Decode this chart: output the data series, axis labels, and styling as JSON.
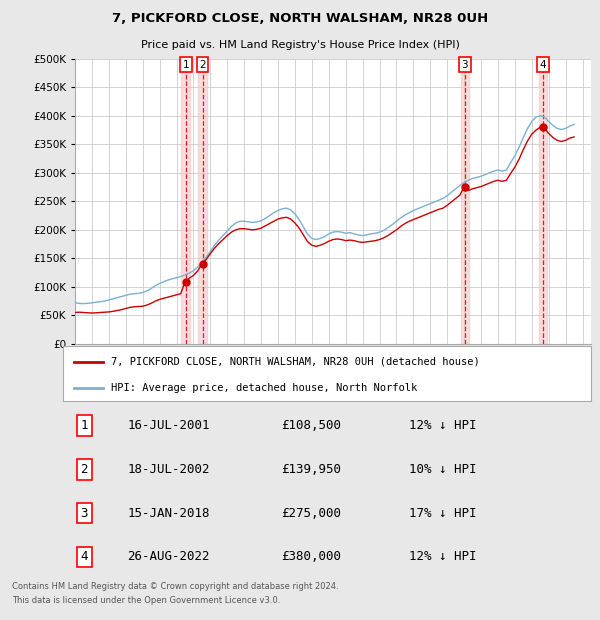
{
  "title1": "7, PICKFORD CLOSE, NORTH WALSHAM, NR28 0UH",
  "title2": "Price paid vs. HM Land Registry's House Price Index (HPI)",
  "ytick_values": [
    0,
    50000,
    100000,
    150000,
    200000,
    250000,
    300000,
    350000,
    400000,
    450000,
    500000
  ],
  "ylim": [
    0,
    500000
  ],
  "xlim_start": 1995.0,
  "xlim_end": 2025.5,
  "background_color": "#e8e8e8",
  "plot_bg_color": "#ffffff",
  "legend_label_red": "7, PICKFORD CLOSE, NORTH WALSHAM, NR28 0UH (detached house)",
  "legend_label_blue": "HPI: Average price, detached house, North Norfolk",
  "transactions": [
    {
      "num": 1,
      "date_str": "16-JUL-2001",
      "price": 108500,
      "pct": "12%",
      "year": 2001.54
    },
    {
      "num": 2,
      "date_str": "18-JUL-2002",
      "price": 139950,
      "pct": "10%",
      "year": 2002.54
    },
    {
      "num": 3,
      "date_str": "15-JAN-2018",
      "price": 275000,
      "pct": "17%",
      "year": 2018.04
    },
    {
      "num": 4,
      "date_str": "26-AUG-2022",
      "price": 380000,
      "pct": "12%",
      "year": 2022.65
    }
  ],
  "footer_line1": "Contains HM Land Registry data © Crown copyright and database right 2024.",
  "footer_line2": "This data is licensed under the Open Government Licence v3.0.",
  "hpi_color": "#7bafd4",
  "price_color": "#cc0000",
  "vline_color": "#cc0000",
  "shade_color": "#f5c6c6",
  "hpi_data": {
    "years": [
      1995.0,
      1995.25,
      1995.5,
      1995.75,
      1996.0,
      1996.25,
      1996.5,
      1996.75,
      1997.0,
      1997.25,
      1997.5,
      1997.75,
      1998.0,
      1998.25,
      1998.5,
      1998.75,
      1999.0,
      1999.25,
      1999.5,
      1999.75,
      2000.0,
      2000.25,
      2000.5,
      2000.75,
      2001.0,
      2001.25,
      2001.5,
      2001.75,
      2002.0,
      2002.25,
      2002.5,
      2002.75,
      2003.0,
      2003.25,
      2003.5,
      2003.75,
      2004.0,
      2004.25,
      2004.5,
      2004.75,
      2005.0,
      2005.25,
      2005.5,
      2005.75,
      2006.0,
      2006.25,
      2006.5,
      2006.75,
      2007.0,
      2007.25,
      2007.5,
      2007.75,
      2008.0,
      2008.25,
      2008.5,
      2008.75,
      2009.0,
      2009.25,
      2009.5,
      2009.75,
      2010.0,
      2010.25,
      2010.5,
      2010.75,
      2011.0,
      2011.25,
      2011.5,
      2011.75,
      2012.0,
      2012.25,
      2012.5,
      2012.75,
      2013.0,
      2013.25,
      2013.5,
      2013.75,
      2014.0,
      2014.25,
      2014.5,
      2014.75,
      2015.0,
      2015.25,
      2015.5,
      2015.75,
      2016.0,
      2016.25,
      2016.5,
      2016.75,
      2017.0,
      2017.25,
      2017.5,
      2017.75,
      2018.0,
      2018.25,
      2018.5,
      2018.75,
      2019.0,
      2019.25,
      2019.5,
      2019.75,
      2020.0,
      2020.25,
      2020.5,
      2020.75,
      2021.0,
      2021.25,
      2021.5,
      2021.75,
      2022.0,
      2022.25,
      2022.5,
      2022.75,
      2023.0,
      2023.25,
      2023.5,
      2023.75,
      2024.0,
      2024.25,
      2024.5
    ],
    "values": [
      72000,
      71000,
      70500,
      71000,
      72000,
      73000,
      74000,
      75000,
      77000,
      79000,
      81000,
      83000,
      85000,
      87000,
      88000,
      88500,
      90000,
      93000,
      97000,
      102000,
      106000,
      109000,
      112000,
      114000,
      116000,
      118000,
      121000,
      124000,
      128000,
      135000,
      143000,
      152000,
      162000,
      173000,
      182000,
      190000,
      198000,
      206000,
      212000,
      215000,
      215000,
      214000,
      213000,
      214000,
      216000,
      220000,
      225000,
      230000,
      234000,
      237000,
      238000,
      235000,
      228000,
      218000,
      205000,
      192000,
      185000,
      183000,
      185000,
      188000,
      193000,
      196000,
      197000,
      196000,
      194000,
      195000,
      193000,
      191000,
      190000,
      191000,
      193000,
      194000,
      196000,
      199000,
      204000,
      209000,
      215000,
      221000,
      226000,
      230000,
      234000,
      237000,
      240000,
      243000,
      246000,
      249000,
      252000,
      255000,
      260000,
      266000,
      272000,
      278000,
      283000,
      287000,
      290000,
      292000,
      294000,
      297000,
      300000,
      303000,
      305000,
      303000,
      305000,
      318000,
      330000,
      345000,
      362000,
      378000,
      390000,
      398000,
      400000,
      398000,
      390000,
      383000,
      378000,
      376000,
      378000,
      382000,
      385000
    ]
  },
  "price_data": {
    "years": [
      1995.0,
      1995.25,
      1995.5,
      1995.75,
      1996.0,
      1996.25,
      1996.5,
      1996.75,
      1997.0,
      1997.25,
      1997.5,
      1997.75,
      1998.0,
      1998.25,
      1998.5,
      1998.75,
      1999.0,
      1999.25,
      1999.5,
      1999.75,
      2000.0,
      2000.25,
      2000.5,
      2000.75,
      2001.0,
      2001.25,
      2001.5,
      2001.75,
      2002.0,
      2002.25,
      2002.5,
      2002.75,
      2003.0,
      2003.25,
      2003.5,
      2003.75,
      2004.0,
      2004.25,
      2004.5,
      2004.75,
      2005.0,
      2005.25,
      2005.5,
      2005.75,
      2006.0,
      2006.25,
      2006.5,
      2006.75,
      2007.0,
      2007.25,
      2007.5,
      2007.75,
      2008.0,
      2008.25,
      2008.5,
      2008.75,
      2009.0,
      2009.25,
      2009.5,
      2009.75,
      2010.0,
      2010.25,
      2010.5,
      2010.75,
      2011.0,
      2011.25,
      2011.5,
      2011.75,
      2012.0,
      2012.25,
      2012.5,
      2012.75,
      2013.0,
      2013.25,
      2013.5,
      2013.75,
      2014.0,
      2014.25,
      2014.5,
      2014.75,
      2015.0,
      2015.25,
      2015.5,
      2015.75,
      2016.0,
      2016.25,
      2016.5,
      2016.75,
      2017.0,
      2017.25,
      2017.5,
      2017.75,
      2018.0,
      2018.25,
      2018.5,
      2018.75,
      2019.0,
      2019.25,
      2019.5,
      2019.75,
      2020.0,
      2020.25,
      2020.5,
      2020.75,
      2021.0,
      2021.25,
      2021.5,
      2021.75,
      2022.0,
      2022.25,
      2022.5,
      2022.75,
      2023.0,
      2023.25,
      2023.5,
      2023.75,
      2024.0,
      2024.25,
      2024.5
    ],
    "values": [
      55000,
      55500,
      55000,
      54500,
      54000,
      54500,
      55000,
      55500,
      56000,
      57000,
      58500,
      60000,
      62000,
      64000,
      65000,
      65500,
      66000,
      68000,
      71000,
      75000,
      78000,
      80000,
      82000,
      84000,
      86000,
      88000,
      108500,
      115000,
      120000,
      128000,
      139950,
      148000,
      158000,
      168000,
      176000,
      183000,
      190000,
      196000,
      200000,
      202000,
      202000,
      201000,
      200000,
      201000,
      203000,
      207000,
      211000,
      215000,
      219000,
      221000,
      222000,
      219000,
      212000,
      203000,
      191000,
      179000,
      173000,
      171000,
      173000,
      176000,
      180000,
      183000,
      184000,
      183000,
      181000,
      182000,
      181000,
      179000,
      178000,
      179000,
      180000,
      181000,
      183000,
      186000,
      190000,
      195000,
      200000,
      206000,
      211000,
      215000,
      218000,
      221000,
      224000,
      227000,
      230000,
      233000,
      236000,
      238000,
      243000,
      249000,
      255000,
      261000,
      275000,
      269000,
      272000,
      274000,
      276000,
      279000,
      282000,
      285000,
      287000,
      285000,
      287000,
      299000,
      310000,
      324000,
      341000,
      356000,
      368000,
      375000,
      380000,
      378000,
      369000,
      362000,
      357000,
      355000,
      357000,
      361000,
      363000
    ]
  }
}
